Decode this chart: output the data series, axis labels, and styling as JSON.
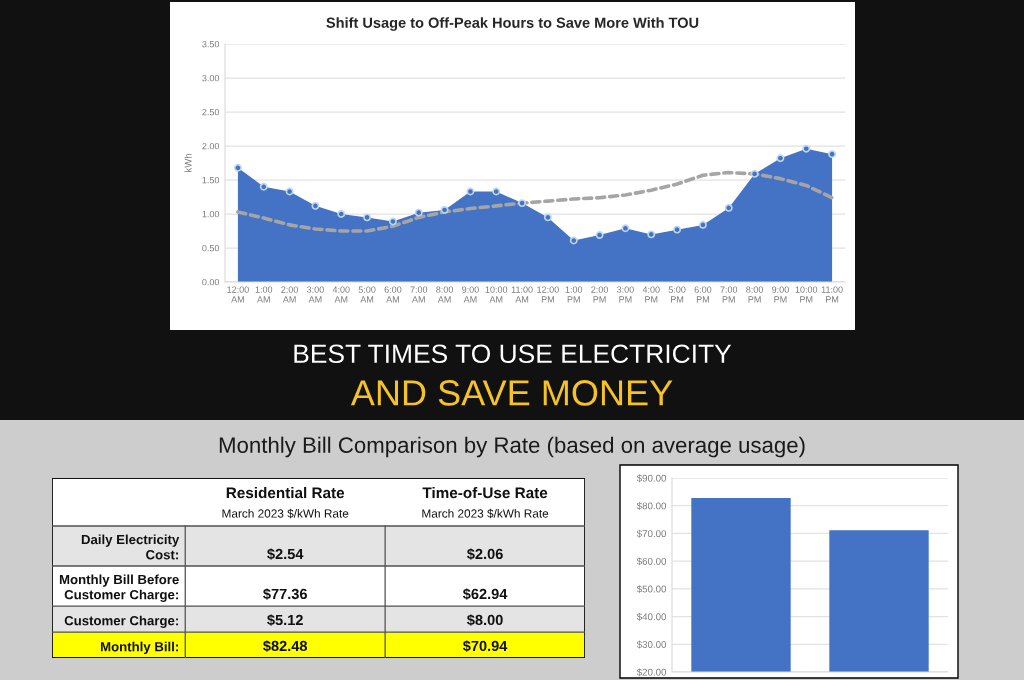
{
  "chart_data": [
    {
      "type": "area",
      "title": "Shift Usage to Off-Peak Hours to Save More With TOU",
      "ylabel": "kWh",
      "categories": [
        "12:00 AM",
        "1:00 AM",
        "2:00 AM",
        "3:00 AM",
        "4:00 AM",
        "5:00 AM",
        "6:00 AM",
        "7:00 AM",
        "8:00 AM",
        "9:00 AM",
        "10:00 AM",
        "11:00 AM",
        "12:00 PM",
        "1:00 PM",
        "2:00 PM",
        "3:00 PM",
        "4:00 PM",
        "5:00 PM",
        "6:00 PM",
        "7:00 PM",
        "8:00 PM",
        "9:00 PM",
        "10:00 PM",
        "11:00 PM"
      ],
      "series": [
        {
          "type": "area",
          "color": "#4472c4",
          "marker": "circle",
          "values": [
            1.68,
            1.4,
            1.33,
            1.12,
            1.0,
            0.95,
            0.89,
            1.02,
            1.06,
            1.33,
            1.33,
            1.16,
            0.95,
            0.61,
            0.69,
            0.79,
            0.7,
            0.77,
            0.84,
            1.09,
            1.59,
            1.82,
            1.96,
            1.88
          ]
        },
        {
          "type": "line",
          "color": "#a5a5a5",
          "line_style": "dashed",
          "values": [
            1.03,
            0.94,
            0.84,
            0.78,
            0.75,
            0.75,
            0.82,
            0.95,
            1.03,
            1.08,
            1.12,
            1.16,
            1.19,
            1.22,
            1.24,
            1.28,
            1.35,
            1.44,
            1.57,
            1.61,
            1.59,
            1.52,
            1.42,
            1.24
          ]
        }
      ],
      "ylim": [
        0,
        3.5
      ],
      "yticks": [
        {
          "value": 0,
          "label": "0.00"
        },
        {
          "value": 0.5,
          "label": "0.50"
        },
        {
          "value": 1,
          "label": "1.00"
        },
        {
          "value": 1.5,
          "label": "1.50"
        },
        {
          "value": 2,
          "label": "2.00"
        },
        {
          "value": 2.5,
          "label": "2.50"
        },
        {
          "value": 3,
          "label": "3.00"
        },
        {
          "value": 3.5,
          "label": "3.50"
        }
      ],
      "grid": "y",
      "annotations": [
        "BEST TIMES TO USE ELECTRICITY",
        "AND SAVE MONEY"
      ]
    },
    {
      "type": "other",
      "title": "Monthly Bill Comparison by Rate (based on average usage)",
      "categories": [
        "Residential Rate\nMarch 2023 $/kWh Rate",
        "Time-of-Use Rate\nMarch 2023 $/kWh Rate"
      ],
      "y_categories": [
        "Daily Electricity\nCost:",
        "Monthly Bill Before\nCustomer Charge:",
        "Customer Charge:",
        "Monthly Bill:"
      ],
      "cell_labels": [
        [
          "$2.54",
          "$2.06"
        ],
        [
          "$77.36",
          "$62.94"
        ],
        [
          "$5.12",
          "$8.00"
        ],
        [
          "$82.48",
          "$70.94"
        ]
      ],
      "colors": [
        "#ffffff",
        "#e4e4e4",
        "#ffffff",
        "#e4e4e4",
        "#ffff00"
      ]
    },
    {
      "type": "bar",
      "categories": [
        null,
        null
      ],
      "values": [
        82.5,
        70.9
      ],
      "color": "#4472c4",
      "ylim": [
        20,
        90
      ],
      "yticks": [
        {
          "value": 20,
          "label": "$20.00"
        },
        {
          "value": 30,
          "label": "$30.00"
        },
        {
          "value": 40,
          "label": "$40.00"
        },
        {
          "value": 50,
          "label": "$50.00"
        },
        {
          "value": 60,
          "label": "$60.00"
        },
        {
          "value": 70,
          "label": "$70.00"
        },
        {
          "value": 80,
          "label": "$80.00"
        },
        {
          "value": 90,
          "label": "$90.00"
        }
      ],
      "grid": "y",
      "tick_labels": "y"
    }
  ]
}
